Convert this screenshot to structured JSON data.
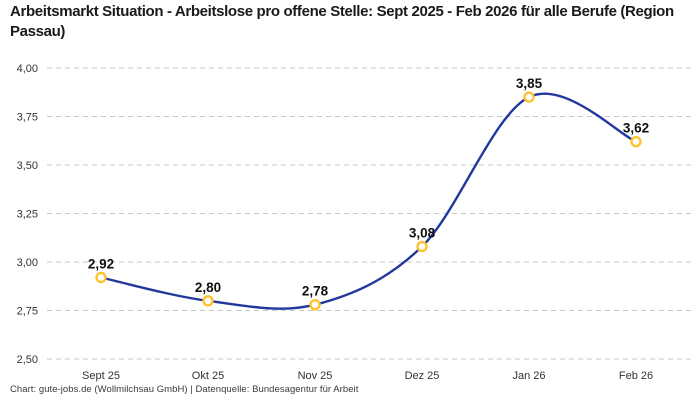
{
  "header": {
    "title": "Arbeitsmarkt Situation - Arbeitslose pro offene Stelle: Sept 2025 - Feb 2026 für alle Berufe (Region Passau)"
  },
  "footer": {
    "text": "Chart: gute-jobs.de (Wollmilchsau GmbH) | Datenquelle: Bundesagentur für Arbeit"
  },
  "chart_data": {
    "type": "line",
    "title": "Arbeitsmarkt Situation - Arbeitslose pro offene Stelle: Sept 2025 - Feb 2026 für alle Berufe (Region Passau)",
    "categories": [
      "Sept 25",
      "Okt 25",
      "Nov 25",
      "Dez 25",
      "Jan 26",
      "Feb 26"
    ],
    "values": [
      2.92,
      2.8,
      2.78,
      3.08,
      3.85,
      3.62
    ],
    "value_labels": [
      "2,92",
      "2,80",
      "2,78",
      "3,08",
      "3,85",
      "3,62"
    ],
    "xlabel": "",
    "ylabel": "",
    "ylim": [
      2.5,
      4.0
    ],
    "yticks": [
      2.5,
      2.75,
      3.0,
      3.25,
      3.5,
      3.75,
      4.0
    ],
    "ytick_labels": [
      "2,50",
      "2,75",
      "3,00",
      "3,25",
      "3,50",
      "3,75",
      "4,00"
    ],
    "grid": "horizontal-dashed",
    "legend_position": "none",
    "line_style": "smooth-spline",
    "colors": {
      "line": "#23389c",
      "marker_ring": "#fdc32f",
      "marker_fill": "#ffffff",
      "gridline": "#c8c8c8",
      "tick_text": "#333333",
      "data_label_text": "#111111",
      "title_text": "#1a1a1a",
      "footer_text": "#3a3a3a",
      "background": "#ffffff"
    }
  }
}
